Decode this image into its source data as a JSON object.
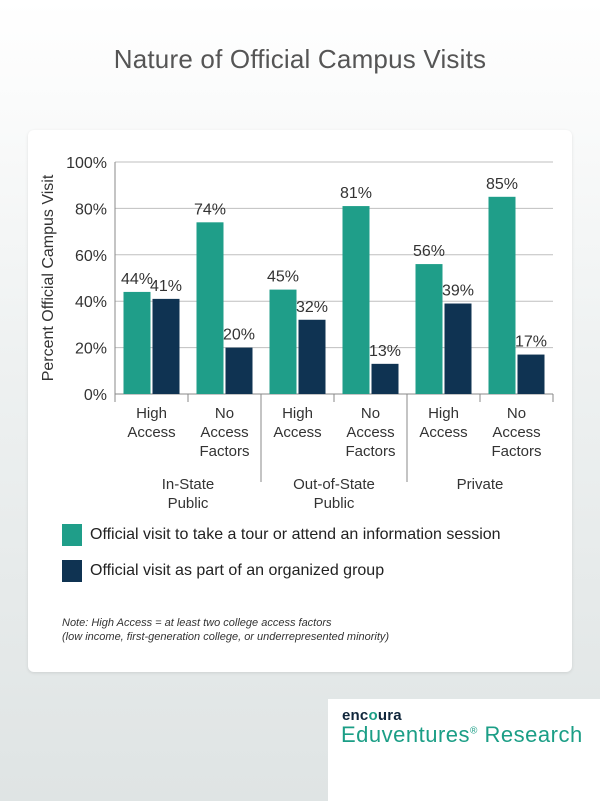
{
  "title": "Nature of Official Campus Visits",
  "chart_data": {
    "type": "bar",
    "ylabel": "Percent Official Campus Visit",
    "ylim": [
      0,
      100
    ],
    "yticks": [
      "0%",
      "20%",
      "40%",
      "60%",
      "80%",
      "100%"
    ],
    "groups": [
      {
        "label": [
          "In-State",
          "Public"
        ],
        "categories": [
          [
            "High",
            "Access"
          ],
          [
            "No",
            "Access",
            "Factors"
          ]
        ]
      },
      {
        "label": [
          "Out-of-State",
          "Public"
        ],
        "categories": [
          [
            "High",
            "Access"
          ],
          [
            "No",
            "Access",
            "Factors"
          ]
        ]
      },
      {
        "label": [
          "Private"
        ],
        "categories": [
          [
            "High",
            "Access"
          ],
          [
            "No",
            "Access",
            "Factors"
          ]
        ]
      }
    ],
    "series": [
      {
        "name": "Official visit to take a tour or attend an information session",
        "color": "#1f9e89",
        "values": [
          44,
          74,
          45,
          81,
          56,
          85
        ],
        "labels": [
          "44%",
          "74%",
          "45%",
          "81%",
          "56%",
          "85%"
        ]
      },
      {
        "name": "Official visit as part of an organized group",
        "color": "#0f3352",
        "values": [
          41,
          20,
          32,
          13,
          39,
          17
        ],
        "labels": [
          "41%",
          "20%",
          "32%",
          "13%",
          "39%",
          "17%"
        ]
      }
    ]
  },
  "legend": [
    {
      "label": "Official visit to take a tour or attend an information session",
      "color": "#1f9e89"
    },
    {
      "label": "Official visit as part of an organized group",
      "color": "#0f3352"
    }
  ],
  "note": {
    "line1": "Note: High Access = at least two college access factors",
    "line2": "(low income, first-generation college, or underrepresented minority)"
  },
  "brand": {
    "logo_prefix": "enc",
    "logo_accent": "o",
    "logo_suffix": "ura",
    "name_prefix": "Eduventures",
    "name_mark": "®",
    "name_suffix": " Research"
  }
}
